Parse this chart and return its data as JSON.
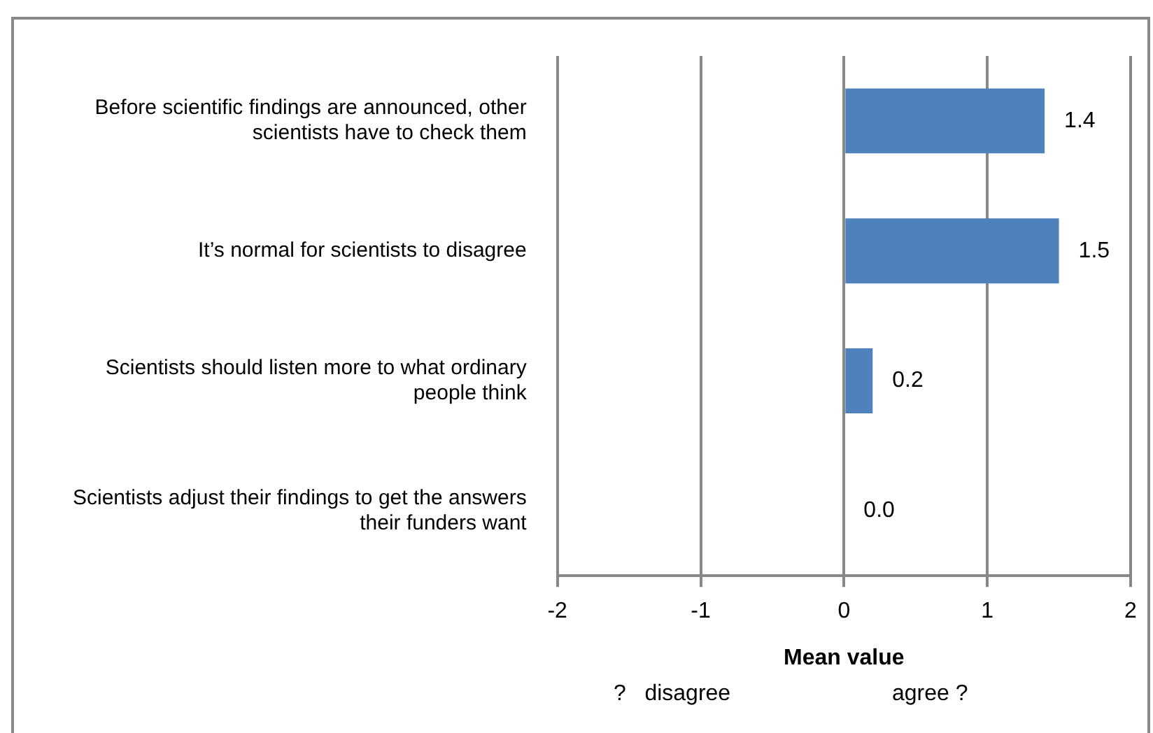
{
  "chart_data": {
    "type": "bar",
    "orientation": "horizontal",
    "categories": [
      "Before scientific findings are announced, other scientists have to check them",
      "It’s normal for scientists to disagree",
      "Scientists should listen more to what ordinary people think",
      "Scientists adjust their findings to get the answers their funders want"
    ],
    "values": [
      1.4,
      1.5,
      0.2,
      0.0
    ],
    "color": "#4f81bd",
    "value_labels": [
      "1.4",
      "1.5",
      "0.2",
      "0.0"
    ],
    "xlim": [
      -2,
      2
    ],
    "xticks": [
      -2,
      -1,
      0,
      1,
      2
    ],
    "xlabel": "Mean value",
    "grid": "x",
    "legend": false,
    "annotations": [
      "?   disagree",
      "agree ?"
    ]
  }
}
